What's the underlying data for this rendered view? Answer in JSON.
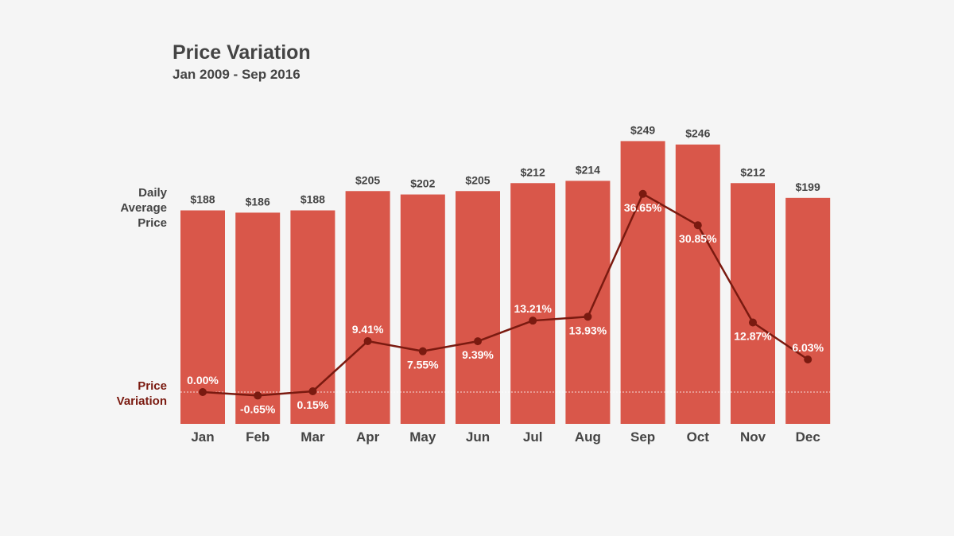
{
  "chart_data": {
    "type": "bar",
    "title": "Price Variation",
    "subtitle": "Jan 2009 - Sep 2016",
    "categories": [
      "Jan",
      "Feb",
      "Mar",
      "Apr",
      "May",
      "Jun",
      "Jul",
      "Aug",
      "Sep",
      "Oct",
      "Nov",
      "Dec"
    ],
    "series": [
      {
        "name": "Daily Average Price",
        "type": "bar",
        "values": [
          188,
          186,
          188,
          205,
          202,
          205,
          212,
          214,
          249,
          246,
          212,
          199
        ],
        "labels": [
          "$188",
          "$186",
          "$188",
          "$205",
          "$202",
          "$205",
          "$212",
          "$214",
          "$249",
          "$246",
          "$212",
          "$199"
        ]
      },
      {
        "name": "Price Variation",
        "type": "line",
        "values": [
          0.0,
          -0.65,
          0.15,
          9.41,
          7.55,
          9.39,
          13.21,
          13.93,
          36.65,
          30.85,
          12.87,
          6.03
        ],
        "labels": [
          "0.00%",
          "-0.65%",
          "0.15%",
          "9.41%",
          "7.55%",
          "9.39%",
          "13.21%",
          "13.93%",
          "36.65%",
          "30.85%",
          "12.87%",
          "6.03%"
        ]
      }
    ],
    "ylabel_bar": [
      "Daily",
      "Average",
      "Price"
    ],
    "ylabel_line": [
      "Price",
      "Variation"
    ],
    "grid": false,
    "colors": {
      "bar": "#d9574a",
      "line": "#7a1a10",
      "text": "#444444",
      "bg": "#f5f5f5"
    }
  }
}
